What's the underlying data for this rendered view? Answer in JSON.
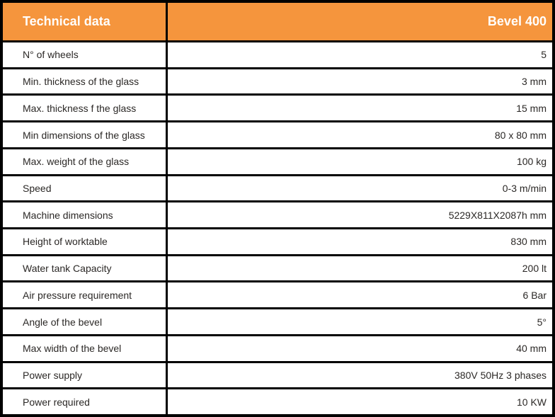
{
  "table": {
    "title": "Technical data",
    "model": "Bevel 400",
    "colors": {
      "accent_orange": "#F5953D",
      "border_black": "#000000",
      "header_text": "#FFFFFF",
      "row_text": "#2B2826"
    },
    "rows": [
      {
        "label": "N° of wheels",
        "value": "5"
      },
      {
        "label": "Min. thickness of the glass",
        "value": "3 mm"
      },
      {
        "label": "Max. thickness f the glass",
        "value": "15 mm"
      },
      {
        "label": "Min dimensions of the glass",
        "value": "80 x 80 mm"
      },
      {
        "label": "Max. weight of the glass",
        "value": "100 kg"
      },
      {
        "label": "Speed",
        "value": "0-3 m/min"
      },
      {
        "label": "Machine dimensions",
        "value": "5229X811X2087h mm"
      },
      {
        "label": "Height of worktable",
        "value": "830 mm"
      },
      {
        "label": "Water tank Capacity",
        "value": "200 lt"
      },
      {
        "label": "Air pressure requirement",
        "value": "6 Bar"
      },
      {
        "label": "Angle of the bevel",
        "value": "5°"
      },
      {
        "label": "Max width of the bevel",
        "value": "40 mm"
      },
      {
        "label": "Power supply",
        "value": "380V 50Hz 3 phases"
      },
      {
        "label": "Power required",
        "value": "10 KW"
      }
    ]
  }
}
